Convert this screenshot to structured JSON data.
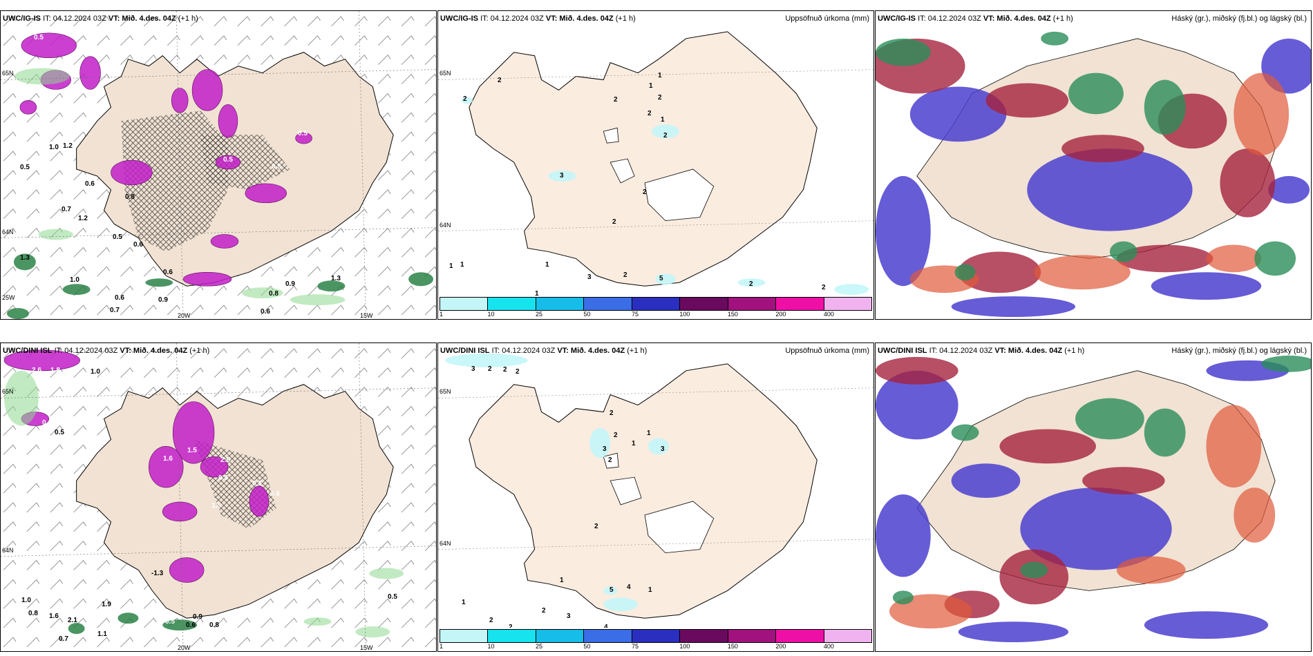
{
  "panels": [
    {
      "id": "top-left",
      "title_model": "UWC/IG-IS",
      "title_it": "IT: 04.12.2024 03Z",
      "title_vt": "VT: Mið. 4.des. 04Z",
      "title_lead": "(+1 h)",
      "right_title": "",
      "labels": [
        "0.5",
        "0.5",
        "0.5",
        "1.0",
        "1.2",
        "0.6",
        "0.8",
        "0.7",
        "1.2",
        "0.5",
        "0.6",
        "0.6",
        "0.9",
        "0.8",
        "0.9",
        "0.6",
        "0.7",
        "0.6",
        "1.3",
        "1.0",
        "0.5",
        "0.5",
        "0.5",
        "1.3"
      ],
      "axis": {
        "lat_top": "65N",
        "lat_mid": "64N",
        "lon_left": "25W",
        "lon_mid": "20W",
        "lon_right": "15W"
      }
    },
    {
      "id": "top-mid",
      "title_model": "UWC/IG-IS",
      "title_it": "IT: 04.12.2024 03Z",
      "title_vt": "VT: Mið. 4.des. 04Z",
      "title_lead": "(+1 h)",
      "right_title": "Uppsöfnuð úrkoma (mm)",
      "labels": [
        "2",
        "2",
        "2",
        "1",
        "2",
        "1",
        "2",
        "1",
        "2",
        "3",
        "2",
        "2",
        "1",
        "1",
        "1",
        "3",
        "2",
        "5",
        "2",
        "2",
        "1"
      ],
      "axis": {
        "lat_top": "65N",
        "lat_mid": "64N"
      }
    },
    {
      "id": "top-right",
      "title_model": "UWC/IG-IS",
      "title_it": "IT: 04.12.2024 03Z",
      "title_vt": "VT: Mið. 4.des. 04Z",
      "title_lead": "(+1 h)",
      "right_title": "Háský (gr.), miðský (fj.bl.) og lágský (bl.)"
    },
    {
      "id": "bottom-left",
      "title_model": "UWC/DINI ISL",
      "title_it": "IT: 04.12.2024 03Z",
      "title_vt": "VT: Mið. 4.des. 04Z",
      "title_lead": "(+1 h)",
      "right_title": "",
      "labels": [
        "2.6",
        "1.8",
        "1.0",
        "0.6",
        "0.5",
        "1.6",
        "1.5",
        "2.5",
        "0.8",
        "0.3",
        "0.6",
        "1.8",
        "-1.3",
        "1.0",
        "0.8",
        "1.6",
        "2.1",
        "0.7",
        "1.1",
        "1.9",
        "0.5",
        "0.9",
        "0.6",
        "0.8",
        "0.5"
      ],
      "axis": {
        "lat_top": "65N",
        "lat_mid": "64N",
        "lon_mid": "20W",
        "lon_right": "15W"
      }
    },
    {
      "id": "bottom-mid",
      "title_model": "UWC/DINI ISL",
      "title_it": "IT: 04.12.2024 03Z",
      "title_vt": "VT: Mið. 4.des. 04Z",
      "title_lead": "(+1 h)",
      "right_title": "Uppsöfnuð úrkoma (mm)",
      "labels": [
        "3",
        "2",
        "2",
        "2",
        "2",
        "2",
        "1",
        "3",
        "3",
        "2",
        "1",
        "2",
        "1",
        "5",
        "4",
        "1",
        "1",
        "2",
        "3",
        "2",
        "4",
        "2"
      ],
      "axis": {
        "lat_top": "65N",
        "lat_mid": "64N"
      }
    },
    {
      "id": "bottom-right",
      "title_model": "UWC/DINI ISL",
      "title_it": "IT: 04.12.2024 03Z",
      "title_vt": "VT: Mið. 4.des. 04Z",
      "title_lead": "(+1 h)",
      "right_title": "Háský (gr.), miðský (fj.bl.) og lágský (bl.)"
    }
  ],
  "precip_legend": {
    "ticks": [
      "1",
      "10",
      "25",
      "50",
      "75",
      "100",
      "150",
      "200",
      "400"
    ],
    "colors": [
      "#c4f6f8",
      "#17e3ee",
      "#16bde8",
      "#3a6de6",
      "#2a2fbf",
      "#6a0a5e",
      "#a1127e",
      "#ee10a6",
      "#f1b3ef"
    ]
  },
  "colors": {
    "land": "#f1e2d3",
    "land_precip": "#fbece0",
    "magenta": "#c21ec8",
    "green": "#1e7a3c",
    "cloud_low": "#4b3fcf",
    "cloud_mid": "#a5233f",
    "cloud_high": "#2a8d5a"
  }
}
